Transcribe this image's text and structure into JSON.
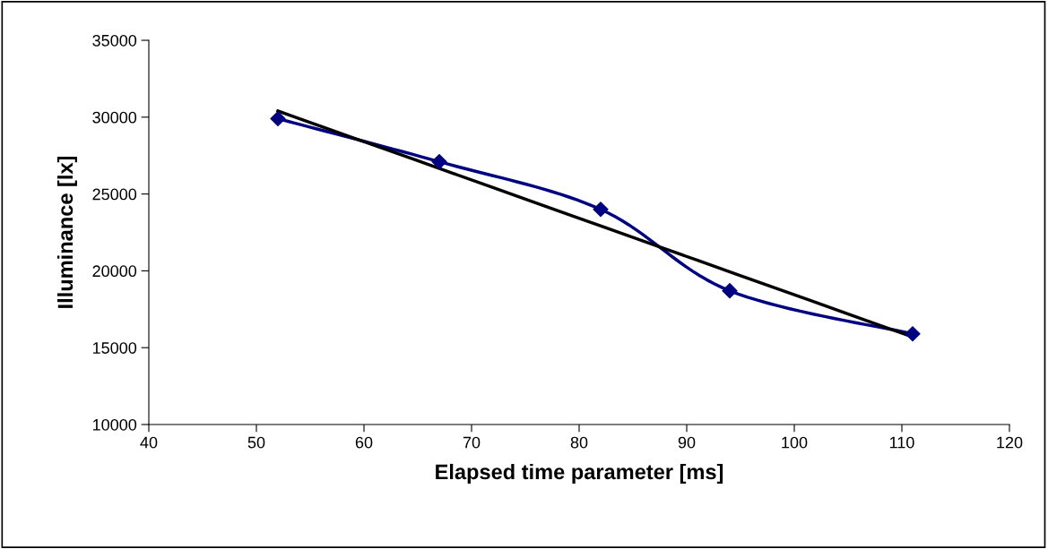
{
  "chart_data": {
    "type": "line",
    "xlabel": "Elapsed time parameter [ms]",
    "ylabel": "Illuminance [lx]",
    "x": [
      52,
      67,
      82,
      94,
      111
    ],
    "series": [
      {
        "color": "#000080",
        "values": [
          29900,
          27100,
          24000,
          18700,
          15900
        ],
        "marker": "diamond"
      },
      {
        "type": "line",
        "color": "#000000",
        "x": [
          52,
          111
        ],
        "values": [
          30400,
          15700
        ],
        "marker": "none"
      }
    ],
    "xlim": [
      40,
      120
    ],
    "xticks": [
      40,
      50,
      60,
      70,
      80,
      90,
      100,
      110,
      120
    ],
    "ylim": [
      10000,
      35000
    ],
    "yticks": [
      10000,
      15000,
      20000,
      25000,
      30000,
      35000
    ],
    "grid": false,
    "legend": false
  }
}
